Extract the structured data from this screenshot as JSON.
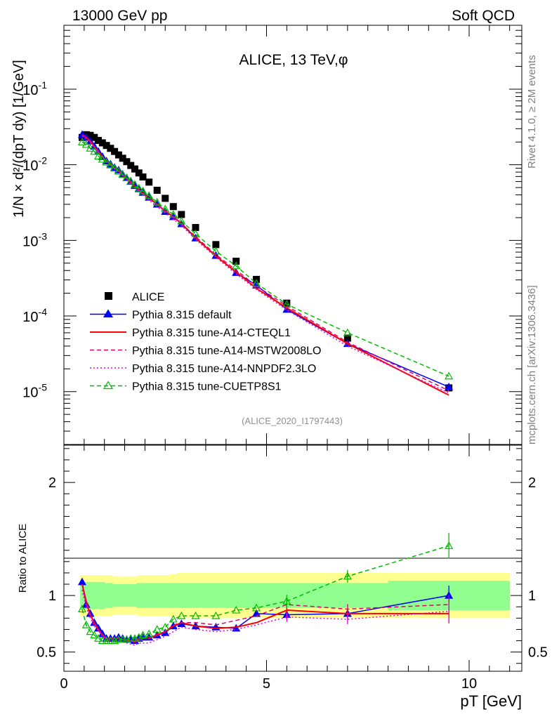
{
  "header": {
    "left": "13000 GeV pp",
    "right": "Soft QCD"
  },
  "side_labels": {
    "rivet": "Rivet 4.1.0, ≥ 2M events",
    "mcplots": "mcplots.cern.ch [arXiv:1306.3436]"
  },
  "chart_data": [
    {
      "type": "scatter",
      "panel": "main",
      "title": "ALICE, 13 TeV,φ",
      "xlabel": "p_T [GeV]",
      "ylabel": "1/N × d²/(dp_T dy) [1/GeV]",
      "yscale": "log",
      "xlim": [
        0,
        11.3
      ],
      "ylim": [
        2e-06,
        0.7
      ],
      "analysis_tag": "(ALICE_2020_I1797443)",
      "legend_position": "bottom-left",
      "y_tick_labels": [
        "10^-5",
        "10^-4",
        "10^-3",
        "10^-2",
        "10^-1"
      ],
      "x": [
        0.45,
        0.55,
        0.65,
        0.75,
        0.85,
        0.95,
        1.05,
        1.15,
        1.25,
        1.35,
        1.45,
        1.55,
        1.65,
        1.75,
        1.85,
        1.95,
        2.1,
        2.3,
        2.5,
        2.7,
        2.9,
        3.25,
        3.75,
        4.25,
        4.75,
        5.5,
        7.0,
        9.5
      ],
      "series": [
        {
          "name": "ALICE",
          "style": "data",
          "color": "#000000",
          "values": [
            0.023,
            0.025,
            0.0245,
            0.023,
            0.021,
            0.0195,
            0.018,
            0.0165,
            0.015,
            0.0135,
            0.0122,
            0.011,
            0.0098,
            0.0088,
            0.0078,
            0.0069,
            0.0059,
            0.0046,
            0.0036,
            0.0028,
            0.0022,
            0.00148,
            0.00088,
            0.00053,
            0.000305,
            0.000148,
            5.1e-05,
            1.12e-05
          ]
        },
        {
          "name": "Pythia 8.315 default",
          "style": "solid-triangle",
          "color": "#0000ff",
          "values": [
            0.025,
            0.023,
            0.0205,
            0.0175,
            0.015,
            0.0128,
            0.0112,
            0.0102,
            0.0092,
            0.0085,
            0.0075,
            0.0067,
            0.006,
            0.0053,
            0.0048,
            0.0043,
            0.0037,
            0.003,
            0.0024,
            0.00205,
            0.00165,
            0.00107,
            0.00063,
            0.000375,
            0.000255,
            0.000122,
            4.3e-05,
            1.15e-05
          ]
        },
        {
          "name": "Pythia 8.315 tune-A14-CTEQL1",
          "style": "solid",
          "color": "#ff0000",
          "values": [
            0.025,
            0.023,
            0.0205,
            0.0175,
            0.015,
            0.0128,
            0.0112,
            0.0102,
            0.0092,
            0.0083,
            0.0074,
            0.0066,
            0.0059,
            0.0052,
            0.0047,
            0.0042,
            0.0036,
            0.003,
            0.00245,
            0.00205,
            0.00168,
            0.00108,
            0.00062,
            0.000382,
            0.000232,
            0.000128,
            4.3e-05,
            9e-06
          ]
        },
        {
          "name": "Pythia 8.315 tune-A14-MSTW2008LO",
          "style": "dashed",
          "color": "#e2006b",
          "values": [
            0.025,
            0.023,
            0.0205,
            0.0175,
            0.015,
            0.0128,
            0.0112,
            0.0102,
            0.0092,
            0.0083,
            0.0074,
            0.0066,
            0.0059,
            0.0052,
            0.0046,
            0.0042,
            0.0036,
            0.003,
            0.00245,
            0.00205,
            0.00168,
            0.00112,
            0.00065,
            0.000405,
            0.00025,
            0.000136,
            4.5e-05,
            1.03e-05
          ]
        },
        {
          "name": "Pythia 8.315 tune-A14-NNPDF2.3LO",
          "style": "dotted",
          "color": "#e300e3",
          "values": [
            0.024,
            0.022,
            0.0195,
            0.0168,
            0.0145,
            0.0124,
            0.0108,
            0.0098,
            0.0088,
            0.008,
            0.0071,
            0.0063,
            0.0056,
            0.005,
            0.0045,
            0.004,
            0.0034,
            0.0028,
            0.0023,
            0.0019,
            0.00158,
            0.00103,
            0.0006,
            0.00036,
            0.000225,
            0.00012,
            4e-05,
            9.6e-06
          ]
        },
        {
          "name": "Pythia 8.315 tune-CUETP8S1",
          "style": "dashed-open-triangle",
          "color": "#00bb00",
          "values": [
            0.02,
            0.0185,
            0.0165,
            0.015,
            0.013,
            0.0118,
            0.0108,
            0.0099,
            0.009,
            0.0082,
            0.0074,
            0.0067,
            0.0061,
            0.0055,
            0.0049,
            0.0045,
            0.0039,
            0.0032,
            0.0026,
            0.0022,
            0.0018,
            0.00122,
            0.00072,
            0.00046,
            0.00027,
            0.000143,
            6e-05,
            1.6e-05
          ]
        }
      ]
    },
    {
      "type": "scatter",
      "panel": "ratio",
      "ylabel": "Ratio to ALICE",
      "xlabel": "p_T [GeV]",
      "xlim": [
        0,
        11.3
      ],
      "ylim": [
        0.33,
        2.33
      ],
      "x_tick_labels": [
        "0",
        "5",
        "10"
      ],
      "y_tick_labels": [
        "0.5",
        "1",
        "2"
      ],
      "x": [
        0.45,
        0.55,
        0.65,
        0.75,
        0.85,
        0.95,
        1.05,
        1.15,
        1.25,
        1.35,
        1.45,
        1.55,
        1.65,
        1.75,
        1.85,
        1.95,
        2.1,
        2.3,
        2.5,
        2.7,
        2.9,
        3.25,
        3.75,
        4.25,
        4.75,
        5.5,
        7.0,
        9.5
      ],
      "uncertainty_bands": {
        "stat_color": "#90ff90",
        "total_color": "#ffff90",
        "bin_edges": [
          0.4,
          0.6,
          0.8,
          1.0,
          1.2,
          1.4,
          1.6,
          1.8,
          2.0,
          2.2,
          2.4,
          2.6,
          2.8,
          3.0,
          3.5,
          4.0,
          4.5,
          5.0,
          6.0,
          8.0,
          11.0
        ],
        "stat": [
          0.12,
          0.12,
          0.12,
          0.11,
          0.1,
          0.1,
          0.1,
          0.11,
          0.11,
          0.11,
          0.11,
          0.11,
          0.11,
          0.11,
          0.11,
          0.11,
          0.11,
          0.11,
          0.11,
          0.13
        ],
        "total": [
          0.18,
          0.18,
          0.18,
          0.18,
          0.17,
          0.17,
          0.17,
          0.18,
          0.18,
          0.18,
          0.18,
          0.19,
          0.2,
          0.2,
          0.2,
          0.2,
          0.2,
          0.2,
          0.2,
          0.2
        ]
      },
      "series": [
        {
          "name": "Pythia 8.315 default",
          "style": "solid-triangle",
          "color": "#0000ff",
          "values": [
            1.12,
            0.92,
            0.84,
            0.76,
            0.71,
            0.66,
            0.62,
            0.62,
            0.62,
            0.63,
            0.62,
            0.61,
            0.61,
            0.6,
            0.62,
            0.63,
            0.63,
            0.65,
            0.67,
            0.73,
            0.75,
            0.73,
            0.72,
            0.71,
            0.84,
            0.83,
            0.84,
            1.0
          ]
        },
        {
          "name": "Pythia 8.315 tune-A14-CTEQL1",
          "style": "solid",
          "color": "#ff0000",
          "values": [
            1.1,
            0.95,
            0.83,
            0.76,
            0.7,
            0.65,
            0.62,
            0.62,
            0.62,
            0.62,
            0.61,
            0.6,
            0.6,
            0.59,
            0.62,
            0.62,
            0.62,
            0.65,
            0.68,
            0.73,
            0.76,
            0.73,
            0.71,
            0.72,
            0.76,
            0.87,
            0.84,
            0.84
          ]
        },
        {
          "name": "Pythia 8.315 tune-A14-MSTW2008LO",
          "style": "dashed",
          "color": "#e2006b",
          "values": [
            1.1,
            0.93,
            0.83,
            0.75,
            0.7,
            0.65,
            0.62,
            0.62,
            0.62,
            0.62,
            0.61,
            0.6,
            0.6,
            0.59,
            0.6,
            0.63,
            0.62,
            0.66,
            0.68,
            0.74,
            0.76,
            0.76,
            0.74,
            0.78,
            0.82,
            0.92,
            0.88,
            0.92
          ]
        },
        {
          "name": "Pythia 8.315 tune-A14-NNPDF2.3LO",
          "style": "dotted",
          "color": "#e300e3",
          "values": [
            1.05,
            0.9,
            0.8,
            0.73,
            0.69,
            0.64,
            0.61,
            0.6,
            0.59,
            0.6,
            0.59,
            0.58,
            0.57,
            0.56,
            0.58,
            0.58,
            0.58,
            0.61,
            0.64,
            0.68,
            0.72,
            0.7,
            0.68,
            0.7,
            0.74,
            0.81,
            0.79,
            0.86
          ]
        },
        {
          "name": "Pythia 8.315 tune-CUETP8S1",
          "style": "dashed-open-triangle",
          "color": "#00bb00",
          "values": [
            0.88,
            0.74,
            0.68,
            0.65,
            0.62,
            0.6,
            0.6,
            0.6,
            0.6,
            0.61,
            0.61,
            0.61,
            0.62,
            0.62,
            0.63,
            0.65,
            0.66,
            0.7,
            0.72,
            0.79,
            0.82,
            0.82,
            0.82,
            0.87,
            0.89,
            0.95,
            1.17,
            1.44
          ]
        }
      ]
    }
  ]
}
